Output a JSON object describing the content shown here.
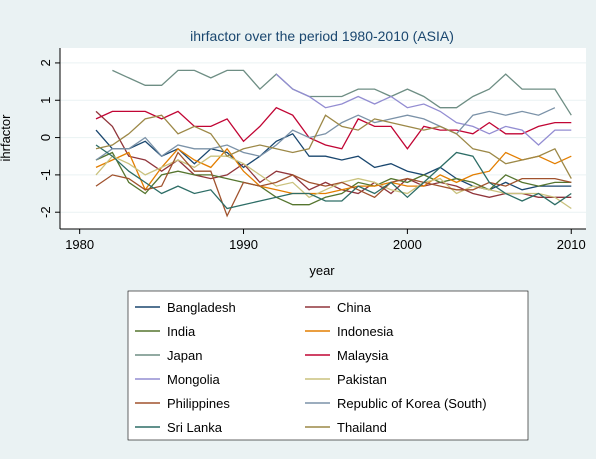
{
  "chart_data": {
    "type": "line",
    "title": "ihrfactor over the period 1980-2010 (ASIA)",
    "x_label": "year",
    "y_label": "ihrfactor",
    "x": [
      1981,
      1982,
      1983,
      1984,
      1985,
      1986,
      1987,
      1988,
      1989,
      1990,
      1991,
      1992,
      1993,
      1994,
      1995,
      1996,
      1997,
      1998,
      1999,
      2000,
      2001,
      2002,
      2003,
      2004,
      2005,
      2006,
      2007,
      2008,
      2009,
      2010
    ],
    "xlim": [
      1978.8,
      2010.9
    ],
    "xticks": [
      1980,
      1990,
      2000,
      2010
    ],
    "ylim": [
      -2.45,
      2.4
    ],
    "yticks": [
      -2,
      -1,
      0,
      1,
      2
    ],
    "grid": true,
    "series": [
      {
        "name": "Bangladesh",
        "color": "#1a476f",
        "values": [
          0.2,
          -0.3,
          -0.3,
          -0.1,
          -0.5,
          -0.3,
          -0.7,
          -0.3,
          -0.4,
          -0.8,
          -0.5,
          -0.1,
          0.1,
          -0.5,
          -0.5,
          -0.6,
          -0.5,
          -0.8,
          -0.7,
          -0.9,
          -1,
          -0.8,
          -1.1,
          -1.3,
          -1.4,
          -1.2,
          -1.4,
          -1.3,
          -1.3,
          -1.3
        ]
      },
      {
        "name": "China",
        "color": "#90353b",
        "values": [
          0.7,
          0.3,
          -0.5,
          -0.6,
          -0.9,
          -0.6,
          -1.0,
          -1.1,
          -1.0,
          -0.7,
          -1.2,
          -0.9,
          -1.0,
          -1.4,
          -1.2,
          -1.4,
          -1.5,
          -1.2,
          -1.5,
          -1.1,
          -1.3,
          -1.2,
          -1.3,
          -1.5,
          -1.6,
          -1.5,
          -1.5,
          -1.6,
          -1.6,
          -1.6
        ]
      },
      {
        "name": "India",
        "color": "#55752f",
        "values": [
          -0.6,
          -0.4,
          -1.2,
          -1.5,
          -1.0,
          -0.9,
          -1.0,
          -1.0,
          -1.1,
          -1.2,
          -1.3,
          -1.6,
          -1.8,
          -1.8,
          -1.6,
          -1.5,
          -1.2,
          -1.3,
          -1.1,
          -1.2,
          -1.0,
          -1.2,
          -1.1,
          -1.2,
          -1.4,
          -1.0,
          -1.2,
          -1.3,
          -1.2,
          -1.2
        ]
      },
      {
        "name": "Indonesia",
        "color": "#e37e00",
        "values": [
          -0.8,
          -0.6,
          -0.4,
          -1.4,
          -0.8,
          -0.3,
          -0.6,
          -0.8,
          -0.3,
          -0.9,
          -1.3,
          -1.4,
          -1.5,
          -1.5,
          -1.5,
          -1.4,
          -1.3,
          -1.3,
          -1.2,
          -1.3,
          -1.3,
          -1.0,
          -1.2,
          -1.0,
          -0.9,
          -0.4,
          -0.6,
          -0.5,
          -0.7,
          -0.5
        ]
      },
      {
        "name": "Japan",
        "color": "#6e8e84",
        "values": [
          null,
          1.8,
          1.6,
          1.4,
          1.4,
          1.8,
          1.8,
          1.6,
          1.8,
          1.8,
          1.3,
          1.7,
          1.3,
          1.1,
          1.1,
          1.1,
          1.3,
          1.3,
          1.1,
          1.3,
          1.1,
          0.8,
          0.8,
          1.1,
          1.3,
          1.7,
          1.3,
          1.3,
          1.3,
          0.6
        ]
      },
      {
        "name": "Malaysia",
        "color": "#c10534",
        "values": [
          0.5,
          0.7,
          0.7,
          0.7,
          0.5,
          0.7,
          0.3,
          0.3,
          0.5,
          -0.1,
          0.3,
          0.8,
          0.6,
          0,
          -0.2,
          -0.3,
          0.5,
          0.3,
          0.3,
          -0.3,
          0.3,
          0.2,
          0.2,
          0.1,
          0.4,
          0.1,
          0.1,
          0.3,
          0.4,
          0.4
        ]
      },
      {
        "name": "Mongolia",
        "color": "#938dd2",
        "values": [
          null,
          null,
          null,
          null,
          null,
          null,
          null,
          null,
          null,
          null,
          null,
          1.7,
          1.3,
          1.1,
          0.8,
          0.9,
          1.1,
          0.9,
          1.1,
          0.8,
          0.9,
          0.7,
          0.4,
          0.3,
          0.1,
          0.3,
          0.2,
          -0.2,
          0.2,
          0.2
        ]
      },
      {
        "name": "Pakistan",
        "color": "#cac27e",
        "values": [
          -1.0,
          -0.5,
          -0.7,
          -1.0,
          -0.8,
          -0.6,
          -0.8,
          -0.5,
          -0.5,
          -0.7,
          -1.0,
          -1.3,
          -1.2,
          -1.6,
          -1.4,
          -1.2,
          -1.1,
          -1.2,
          -1.4,
          -1.5,
          -1.2,
          -1.1,
          -1.5,
          -1.3,
          -1.4,
          -1.5,
          -1.5,
          -1.5,
          -1.6,
          -1.9
        ]
      },
      {
        "name": "Philippines",
        "color": "#a0522d",
        "values": [
          -1.3,
          -1.0,
          -1.1,
          -1.4,
          -1.3,
          -0.4,
          -0.9,
          -0.9,
          -2.1,
          -1.2,
          -1.3,
          -1.2,
          -1.0,
          -1.2,
          -1.3,
          -1.2,
          -1.4,
          -1.6,
          -1.2,
          -1.1,
          -1.2,
          -1.3,
          -1.4,
          -1.4,
          -1.2,
          -1.3,
          -1.1,
          -1.1,
          -1.1,
          -1.2
        ]
      },
      {
        "name": "Republic of Korea (South)",
        "color": "#7b92a8",
        "values": [
          -0.6,
          -0.3,
          -0.3,
          0,
          -0.5,
          -0.2,
          -0.3,
          -0.3,
          -0.2,
          -0.4,
          -0.5,
          -0.2,
          0.2,
          0,
          0.1,
          0.4,
          0.6,
          0.4,
          0.5,
          0.6,
          0.5,
          0.3,
          0.1,
          0.6,
          0.7,
          0.6,
          0.7,
          0.6,
          0.8,
          null
        ]
      },
      {
        "name": "Sri Lanka",
        "color": "#2d6d66",
        "values": [
          -0.2,
          -0.5,
          -0.9,
          -1.2,
          -1.5,
          -1.3,
          -1.5,
          -1.4,
          -1.9,
          -1.8,
          -1.7,
          -1.6,
          -1.5,
          -1.5,
          -1.7,
          -1.7,
          -1.3,
          -1.5,
          -1.2,
          -1.6,
          -1.2,
          -0.8,
          -0.4,
          -0.5,
          -1.2,
          -1.5,
          -1.7,
          -1.5,
          -1.8,
          -1.5
        ]
      },
      {
        "name": "Thailand",
        "color": "#9c8847",
        "values": [
          -0.3,
          -0.2,
          0.1,
          0.5,
          0.6,
          0.1,
          0.3,
          0.1,
          -0.5,
          -0.3,
          -0.2,
          -0.3,
          -0.4,
          -0.3,
          0.6,
          0.3,
          0.2,
          0.5,
          0.4,
          0.3,
          0.2,
          0.3,
          0.1,
          -0.3,
          -0.4,
          -0.7,
          -0.6,
          -0.5,
          -0.3,
          -1.1
        ]
      }
    ]
  }
}
